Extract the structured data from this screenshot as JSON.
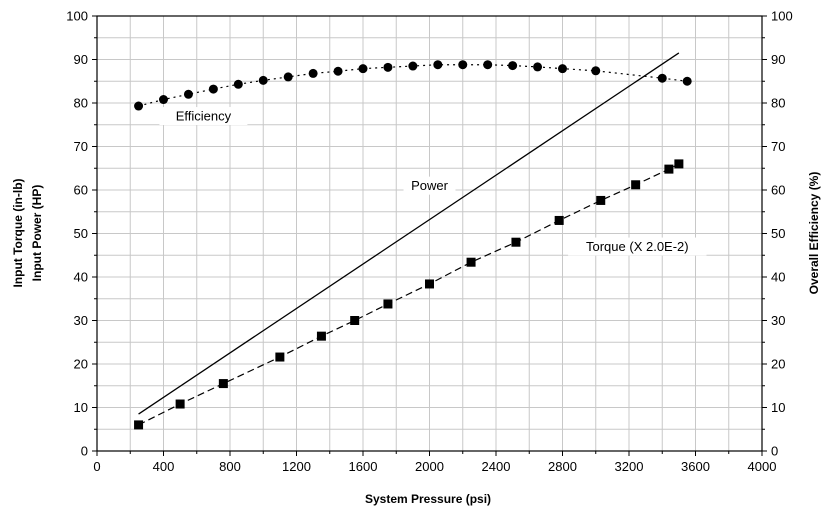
{
  "chart_data": {
    "type": "line",
    "xlabel": "System Pressure (psi)",
    "ylabel_left_line1": "Input Torque (in-lb)",
    "ylabel_left_line2": "Input Power (HP)",
    "ylabel_right": "Overall Efficiency (%)",
    "xlim": [
      0,
      4000
    ],
    "ylim_left": [
      0,
      100
    ],
    "ylim_right": [
      0,
      100
    ],
    "x_ticks": [
      0,
      400,
      800,
      1200,
      1600,
      2000,
      2400,
      2800,
      3200,
      3600,
      4000
    ],
    "y_ticks": [
      0,
      10,
      20,
      30,
      40,
      50,
      60,
      70,
      80,
      90,
      100
    ],
    "grid": true,
    "legend": "none",
    "series": [
      {
        "name": "Efficiency",
        "axis": "right",
        "marker": "circle",
        "line": "dotted",
        "x": [
          250,
          400,
          550,
          700,
          850,
          1000,
          1150,
          1300,
          1450,
          1600,
          1750,
          1900,
          2050,
          2200,
          2350,
          2500,
          2650,
          2800,
          3000,
          3400,
          3550
        ],
        "y": [
          79.3,
          80.8,
          82.0,
          83.2,
          84.3,
          85.2,
          86.0,
          86.8,
          87.3,
          87.9,
          88.2,
          88.5,
          88.8,
          88.8,
          88.8,
          88.6,
          88.3,
          87.9,
          87.4,
          85.7,
          85.0
        ]
      },
      {
        "name": "Power",
        "axis": "left",
        "marker": "none",
        "line": "solid",
        "x": [
          250,
          3500
        ],
        "y": [
          8.5,
          91.5
        ]
      },
      {
        "name": "Torque (X 2.0E-2)",
        "axis": "left",
        "marker": "square",
        "line": "dashed",
        "x": [
          250,
          500,
          760,
          1100,
          1350,
          1550,
          1750,
          2000,
          2250,
          2520,
          2780,
          3030,
          3240,
          3440,
          3500
        ],
        "y": [
          6.0,
          10.8,
          15.5,
          21.6,
          26.4,
          30.0,
          33.8,
          38.4,
          43.4,
          48.0,
          53.0,
          57.6,
          61.2,
          64.8,
          66.0
        ]
      }
    ],
    "annotations": [
      {
        "text": "Efficiency",
        "x": 640,
        "y": 77
      },
      {
        "text": "Power",
        "x": 2000,
        "y": 61
      },
      {
        "text": "Torque (X 2.0E-2)",
        "x": 3250,
        "y": 47
      }
    ]
  }
}
